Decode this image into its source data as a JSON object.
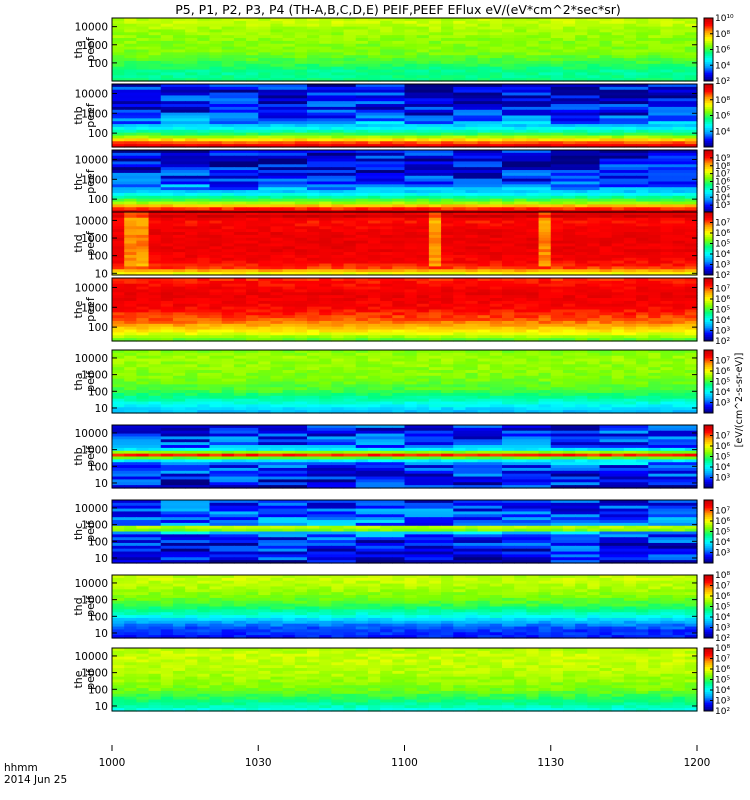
{
  "chart_data": {
    "type": "heatmap",
    "title": "P5, P1, P2, P3, P4 (TH-A,B,C,D,E) PEIF,PEEF EFlux eV/(eV*cm^2*sec*sr)",
    "colorbar_unit_label": "[eV/(cm^2-s-sr-eV)]",
    "x_axis": {
      "label_line1": "hhmm",
      "label_line2": "2014 Jun 25",
      "range_minutes": [
        0,
        120
      ],
      "tick_labels": [
        "1000",
        "1030",
        "1100",
        "1130",
        "1200"
      ],
      "tick_positions_minutes": [
        0,
        30,
        60,
        90,
        120
      ]
    },
    "y_axis": {
      "scale": "log",
      "unit": "eV"
    },
    "colormap": [
      "#000080",
      "#0000ff",
      "#00a0ff",
      "#00ffff",
      "#00ff80",
      "#80ff00",
      "#ffff00",
      "#ffa000",
      "#ff0000",
      "#c00000"
    ],
    "panels": [
      {
        "id": "tha-peef",
        "label_line1": "tha",
        "label_line2": "peef",
        "y_range": [
          10,
          30000
        ],
        "y_ticks": [
          "100",
          "1000",
          "10000"
        ],
        "y_tick_values": [
          100,
          1000,
          10000
        ],
        "cb_range_exp": [
          2,
          10
        ],
        "cb_ticks": [
          "10²",
          "10⁴",
          "10⁶",
          "10⁸",
          "10¹⁰"
        ],
        "cb_tick_exp": [
          2,
          4,
          6,
          8,
          10
        ],
        "profile": [
          [
            10,
            0.45
          ],
          [
            30,
            0.42
          ],
          [
            80,
            0.48
          ],
          [
            300,
            0.55
          ],
          [
            1000,
            0.56
          ],
          [
            5000,
            0.58
          ],
          [
            20000,
            0.62
          ],
          [
            30000,
            0.6
          ]
        ]
      },
      {
        "id": "thb-peef",
        "label_line1": "thb",
        "label_line2": "peef",
        "y_range": [
          20,
          30000
        ],
        "y_ticks": [
          "100",
          "1000",
          "10000"
        ],
        "y_tick_values": [
          100,
          1000,
          10000
        ],
        "cb_range_exp": [
          2,
          10
        ],
        "cb_ticks": [
          "10⁴",
          "10⁶",
          "10⁸"
        ],
        "cb_tick_exp": [
          4,
          6,
          8
        ],
        "profile": [
          [
            20,
            0.95
          ],
          [
            35,
            0.82
          ],
          [
            60,
            0.6
          ],
          [
            100,
            0.45
          ],
          [
            200,
            0.3
          ],
          [
            500,
            0.18
          ],
          [
            1000,
            0.12
          ],
          [
            10000,
            0.1
          ],
          [
            30000,
            0.08
          ]
        ]
      },
      {
        "id": "thc-peef",
        "label_line1": "thc",
        "label_line2": "peef",
        "y_range": [
          20,
          30000
        ],
        "y_ticks": [
          "100",
          "1000",
          "10000"
        ],
        "y_tick_values": [
          100,
          1000,
          10000
        ],
        "cb_range_exp": [
          2,
          10
        ],
        "cb_ticks": [
          "10³",
          "10⁴",
          "10⁵",
          "10⁶",
          "10⁷",
          "10⁸",
          "10⁹"
        ],
        "cb_tick_exp": [
          3,
          4,
          5,
          6,
          7,
          8,
          9
        ],
        "profile": [
          [
            20,
            0.98
          ],
          [
            30,
            0.9
          ],
          [
            45,
            0.75
          ],
          [
            60,
            0.6
          ],
          [
            100,
            0.48
          ],
          [
            200,
            0.3
          ],
          [
            500,
            0.18
          ],
          [
            2000,
            0.1
          ],
          [
            30000,
            0.08
          ]
        ]
      },
      {
        "id": "thd-peef",
        "label_line1": "thd",
        "label_line2": "peef",
        "y_range": [
          8,
          30000
        ],
        "y_ticks": [
          "10",
          "100",
          "1000",
          "10000"
        ],
        "y_tick_values": [
          10,
          100,
          1000,
          10000
        ],
        "cb_range_exp": [
          2,
          8
        ],
        "cb_ticks": [
          "10²",
          "10³",
          "10⁴",
          "10⁵",
          "10⁶",
          "10⁷"
        ],
        "cb_tick_exp": [
          2,
          3,
          4,
          5,
          6,
          7
        ],
        "profile": [
          [
            8,
            0.62
          ],
          [
            12,
            0.72
          ],
          [
            20,
            0.85
          ],
          [
            50,
            0.9
          ],
          [
            200,
            0.92
          ],
          [
            2000,
            0.92
          ],
          [
            10000,
            0.88
          ],
          [
            18000,
            0.98
          ],
          [
            30000,
            0.9
          ]
        ]
      },
      {
        "id": "the-peef",
        "label_line1": "the",
        "label_line2": "peef",
        "y_range": [
          20,
          30000
        ],
        "y_ticks": [
          "100",
          "1000",
          "10000"
        ],
        "y_tick_values": [
          100,
          1000,
          10000
        ],
        "cb_range_exp": [
          2,
          8
        ],
        "cb_ticks": [
          "10²",
          "10³",
          "10⁴",
          "10⁵",
          "10⁶",
          "10⁷"
        ],
        "cb_tick_exp": [
          2,
          3,
          4,
          5,
          6,
          7
        ],
        "profile": [
          [
            20,
            0.5
          ],
          [
            40,
            0.62
          ],
          [
            80,
            0.72
          ],
          [
            200,
            0.82
          ],
          [
            1000,
            0.9
          ],
          [
            5000,
            0.92
          ],
          [
            20000,
            0.88
          ],
          [
            30000,
            0.85
          ]
        ]
      },
      {
        "id": "tha-peif",
        "label_line1": "tha",
        "label_line2": "peif",
        "y_range": [
          5,
          30000
        ],
        "y_ticks": [
          "10",
          "100",
          "1000",
          "10000"
        ],
        "y_tick_values": [
          10,
          100,
          1000,
          10000
        ],
        "cb_range_exp": [
          2,
          8
        ],
        "cb_ticks": [
          "10³",
          "10⁴",
          "10⁵",
          "10⁶",
          "10⁷"
        ],
        "cb_tick_exp": [
          3,
          4,
          5,
          6,
          7
        ],
        "profile": [
          [
            5,
            0.25
          ],
          [
            10,
            0.3
          ],
          [
            30,
            0.4
          ],
          [
            100,
            0.5
          ],
          [
            500,
            0.55
          ],
          [
            3000,
            0.57
          ],
          [
            10000,
            0.58
          ],
          [
            30000,
            0.55
          ]
        ]
      },
      {
        "id": "thb-peif",
        "label_line1": "thb",
        "label_line2": "peif",
        "y_range": [
          5,
          30000
        ],
        "y_ticks": [
          "10",
          "100",
          "1000",
          "10000"
        ],
        "y_tick_values": [
          10,
          100,
          1000,
          10000
        ],
        "cb_range_exp": [
          2,
          8
        ],
        "cb_ticks": [
          "10³",
          "10⁴",
          "10⁵",
          "10⁶",
          "10⁷"
        ],
        "cb_tick_exp": [
          3,
          4,
          5,
          6,
          7
        ],
        "profile": [
          [
            5,
            0.1
          ],
          [
            30,
            0.12
          ],
          [
            100,
            0.15
          ],
          [
            250,
            0.35
          ],
          [
            400,
            0.7
          ],
          [
            500,
            0.92
          ],
          [
            600,
            0.7
          ],
          [
            900,
            0.35
          ],
          [
            2000,
            0.15
          ],
          [
            30000,
            0.12
          ]
        ]
      },
      {
        "id": "thc-peif",
        "label_line1": "thc",
        "label_line2": "peif",
        "y_range": [
          5,
          30000
        ],
        "y_ticks": [
          "10",
          "100",
          "1000",
          "10000"
        ],
        "y_tick_values": [
          10,
          100,
          1000,
          10000
        ],
        "cb_range_exp": [
          2,
          8
        ],
        "cb_ticks": [
          "10³",
          "10⁴",
          "10⁵",
          "10⁶",
          "10⁷"
        ],
        "cb_tick_exp": [
          3,
          4,
          5,
          6,
          7
        ],
        "profile": [
          [
            5,
            0.1
          ],
          [
            100,
            0.12
          ],
          [
            300,
            0.2
          ],
          [
            500,
            0.6
          ],
          [
            600,
            0.95
          ],
          [
            700,
            0.6
          ],
          [
            1000,
            0.2
          ],
          [
            30000,
            0.12
          ]
        ]
      },
      {
        "id": "thd-peif",
        "label_line1": "thd",
        "label_line2": "peif",
        "y_range": [
          5,
          30000
        ],
        "y_ticks": [
          "10",
          "100",
          "1000",
          "10000"
        ],
        "y_tick_values": [
          10,
          100,
          1000,
          10000
        ],
        "cb_range_exp": [
          2,
          8
        ],
        "cb_ticks": [
          "10²",
          "10³",
          "10⁴",
          "10⁵",
          "10⁶",
          "10⁷",
          "10⁸"
        ],
        "cb_tick_exp": [
          2,
          3,
          4,
          5,
          6,
          7,
          8
        ],
        "profile": [
          [
            5,
            0.12
          ],
          [
            15,
            0.15
          ],
          [
            40,
            0.22
          ],
          [
            100,
            0.35
          ],
          [
            500,
            0.5
          ],
          [
            3000,
            0.58
          ],
          [
            15000,
            0.62
          ],
          [
            30000,
            0.6
          ]
        ]
      },
      {
        "id": "the-peif",
        "label_line1": "the",
        "label_line2": "peif",
        "y_range": [
          5,
          30000
        ],
        "y_ticks": [
          "10",
          "100",
          "1000",
          "10000"
        ],
        "y_tick_values": [
          10,
          100,
          1000,
          10000
        ],
        "cb_range_exp": [
          2,
          8
        ],
        "cb_ticks": [
          "10²",
          "10³",
          "10⁴",
          "10⁵",
          "10⁶",
          "10⁷",
          "10⁸"
        ],
        "cb_tick_exp": [
          2,
          3,
          4,
          5,
          6,
          7,
          8
        ],
        "profile": [
          [
            5,
            0.35
          ],
          [
            20,
            0.45
          ],
          [
            100,
            0.55
          ],
          [
            1000,
            0.6
          ],
          [
            10000,
            0.62
          ],
          [
            30000,
            0.6
          ]
        ]
      }
    ]
  }
}
